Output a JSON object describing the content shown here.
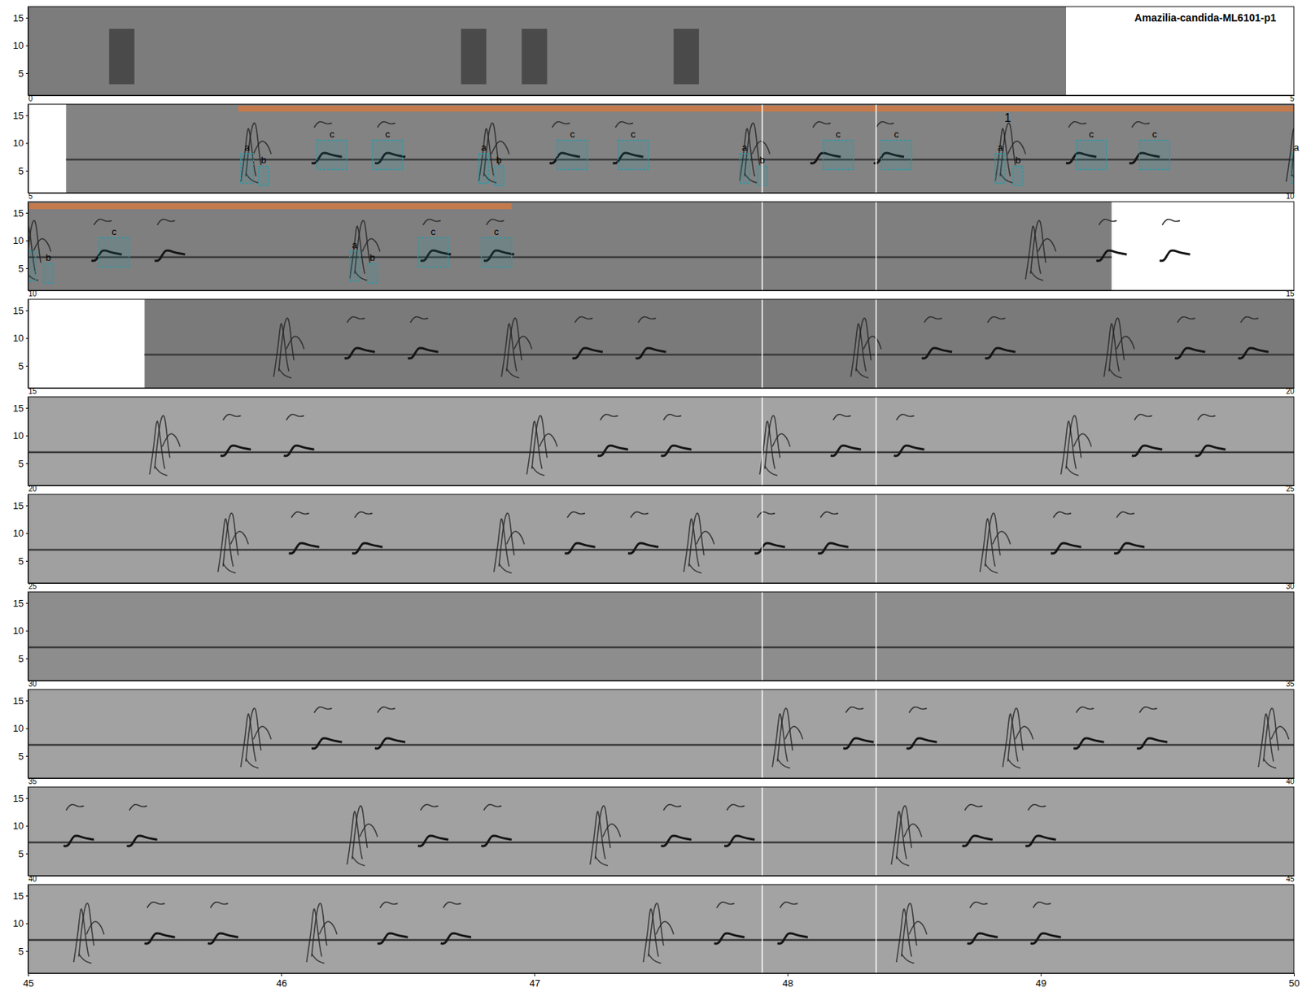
{
  "chart_data": {
    "type": "spectrogram",
    "title": "Amazilia-candida-ML6101-p1",
    "ylim": [
      1,
      17
    ],
    "yticks": [
      5,
      10,
      15
    ],
    "cursor_offsets": [
      2.9,
      3.35
    ],
    "rows": [
      {
        "xlim": [
          0,
          5
        ],
        "xticks": [
          0,
          5
        ],
        "signal": [
          0,
          4.1
        ],
        "calls": [
          0.37,
          1.76,
          2.0,
          2.6
        ]
      },
      {
        "xlim": [
          5,
          10
        ],
        "xticks": [
          5,
          10
        ],
        "signal": [
          5.15,
          10
        ],
        "band": 7,
        "phrases": [
          5.86,
          6.8,
          7.83,
          8.84,
          9.99
        ]
      },
      {
        "xlim": [
          10,
          15
        ],
        "xticks": [
          10,
          15
        ],
        "signal": [
          10,
          14.28
        ],
        "band": 7,
        "phrases": [
          11.29,
          13.96
        ]
      },
      {
        "xlim": [
          15,
          20
        ],
        "xticks": [
          15,
          20
        ],
        "signal": [
          15.46,
          20
        ],
        "band": 7,
        "phrases": [
          15.99,
          16.89,
          18.27,
          19.27
        ]
      },
      {
        "xlim": [
          20,
          25
        ],
        "xticks": [
          20,
          25
        ],
        "signal": [
          20,
          25
        ],
        "band": 7,
        "phrases": [
          20.5,
          21.99,
          22.91,
          24.1
        ]
      },
      {
        "xlim": [
          25,
          30
        ],
        "xticks": [
          25,
          30
        ],
        "signal": [
          25,
          30
        ],
        "band": 7,
        "phrases": [
          25.77,
          26.86,
          27.61,
          28.78
        ]
      },
      {
        "xlim": [
          30,
          35
        ],
        "xticks": [
          30,
          35
        ],
        "signal": [
          30,
          35
        ],
        "band": 7,
        "phrases": []
      },
      {
        "xlim": [
          35,
          40
        ],
        "xticks": [
          35,
          40
        ],
        "signal": [
          35,
          40
        ],
        "band": 7,
        "phrases": [
          35.86,
          37.96,
          38.87,
          39.88
        ]
      },
      {
        "xlim": [
          40,
          45
        ],
        "xticks": [
          40,
          45
        ],
        "signal": [
          40,
          45
        ],
        "band": 7,
        "phrases": [
          41.28,
          42.24,
          43.43
        ]
      },
      {
        "xlim": [
          45,
          50
        ],
        "xticks": [
          45,
          46,
          47,
          48,
          49,
          50
        ],
        "signal": [
          45,
          50
        ],
        "band": 7,
        "phrases": [
          45.2,
          46.12,
          47.45,
          48.45
        ]
      }
    ],
    "selection": {
      "label": "1",
      "start": 5.83,
      "end": 11.91
    },
    "annotations": [
      {
        "label": "a",
        "start": 5.84,
        "end": 5.89,
        "low": 2.7,
        "high": 8.1
      },
      {
        "label": "b",
        "start": 5.91,
        "end": 5.95,
        "low": 2.3,
        "high": 5.8
      },
      {
        "label": "c",
        "start": 6.14,
        "end": 6.26,
        "low": 5.2,
        "high": 10.5
      },
      {
        "label": "c",
        "start": 6.36,
        "end": 6.48,
        "low": 5.2,
        "high": 10.5
      },
      {
        "label": "a",
        "start": 6.78,
        "end": 6.82,
        "low": 2.7,
        "high": 8.1
      },
      {
        "label": "b",
        "start": 6.84,
        "end": 6.88,
        "low": 2.3,
        "high": 5.8
      },
      {
        "label": "c",
        "start": 7.09,
        "end": 7.21,
        "low": 5.2,
        "high": 10.5
      },
      {
        "label": "c",
        "start": 7.33,
        "end": 7.45,
        "low": 5.2,
        "high": 10.5
      },
      {
        "label": "a",
        "start": 7.81,
        "end": 7.85,
        "low": 2.7,
        "high": 8.1
      },
      {
        "label": "b",
        "start": 7.88,
        "end": 7.92,
        "low": 2.3,
        "high": 5.8
      },
      {
        "label": "c",
        "start": 8.14,
        "end": 8.26,
        "low": 5.2,
        "high": 10.5
      },
      {
        "label": "c",
        "start": 8.37,
        "end": 8.49,
        "low": 5.2,
        "high": 10.5
      },
      {
        "label": "a",
        "start": 8.82,
        "end": 8.86,
        "low": 2.7,
        "high": 8.1
      },
      {
        "label": "b",
        "start": 8.89,
        "end": 8.93,
        "low": 2.3,
        "high": 5.8
      },
      {
        "label": "c",
        "start": 9.14,
        "end": 9.26,
        "low": 5.2,
        "high": 10.5
      },
      {
        "label": "c",
        "start": 9.39,
        "end": 9.51,
        "low": 5.2,
        "high": 10.5
      },
      {
        "label": "a",
        "start": 9.99,
        "end": 10.03,
        "low": 2.7,
        "high": 8.1
      },
      {
        "label": "b",
        "start": 10.06,
        "end": 10.1,
        "low": 2.3,
        "high": 5.8
      },
      {
        "label": "c",
        "start": 10.28,
        "end": 10.4,
        "low": 5.2,
        "high": 10.5
      },
      {
        "label": "a",
        "start": 11.27,
        "end": 11.31,
        "low": 2.7,
        "high": 8.1
      },
      {
        "label": "b",
        "start": 11.34,
        "end": 11.38,
        "low": 2.3,
        "high": 5.8
      },
      {
        "label": "c",
        "start": 11.54,
        "end": 11.66,
        "low": 5.2,
        "high": 10.5
      },
      {
        "label": "c",
        "start": 11.79,
        "end": 11.91,
        "low": 5.2,
        "high": 10.5
      }
    ]
  }
}
